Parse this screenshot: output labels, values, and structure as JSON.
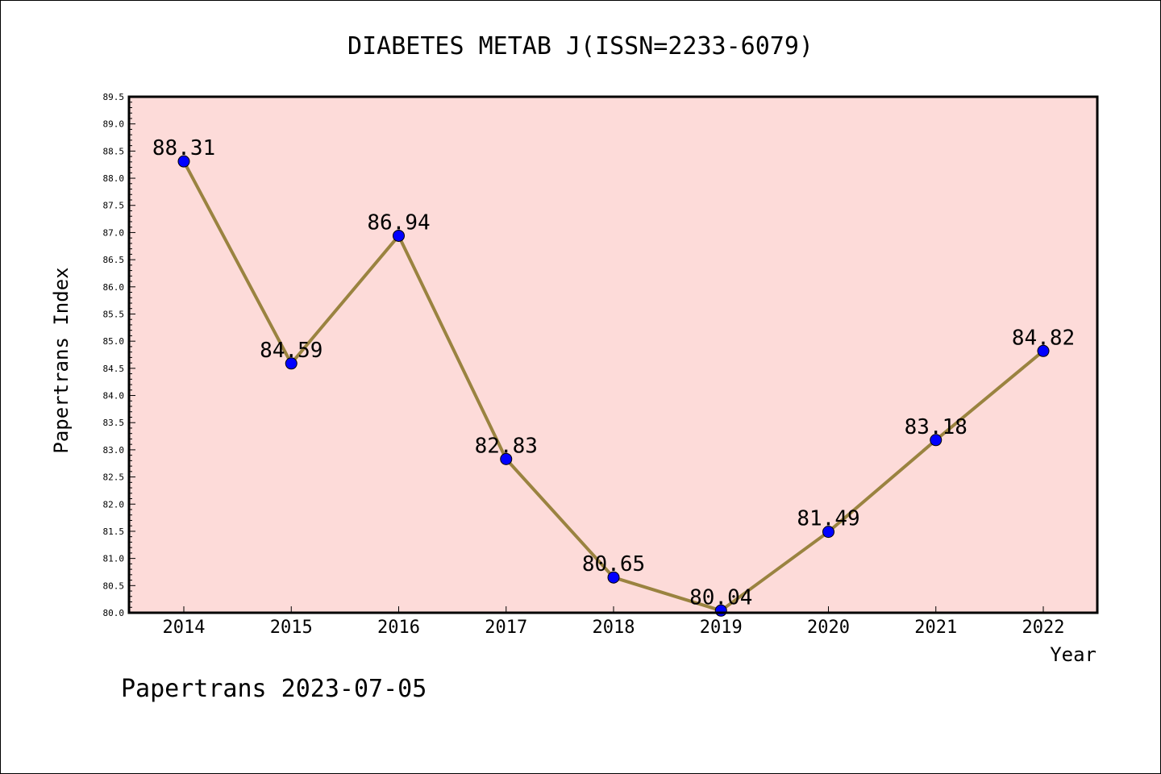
{
  "chart_data": {
    "type": "line",
    "title": "DIABETES METAB J(ISSN=2233-6079)",
    "xlabel": "Year",
    "ylabel": "Papertrans Index",
    "categories": [
      "2014",
      "2015",
      "2016",
      "2017",
      "2018",
      "2019",
      "2020",
      "2021",
      "2022"
    ],
    "values": [
      88.31,
      84.59,
      86.94,
      82.83,
      80.65,
      80.04,
      81.49,
      83.18,
      84.82
    ],
    "data_labels": [
      "88.31",
      "84.59",
      "86.94",
      "82.83",
      "80.65",
      "80.04",
      "81.49",
      "83.18",
      "84.82"
    ],
    "ylim": [
      80.0,
      89.5
    ],
    "yticks": [
      "80.0",
      "80.5",
      "81.0",
      "81.5",
      "82.0",
      "82.5",
      "83.0",
      "83.5",
      "84.0",
      "84.5",
      "85.0",
      "85.5",
      "86.0",
      "86.5",
      "87.0",
      "87.5",
      "88.0",
      "88.5",
      "89.0",
      "89.5"
    ],
    "grid": false,
    "colors": {
      "plot_background": "#fddbd9",
      "line": "#9a8340",
      "marker": "#0000ff",
      "axes": "#000000"
    }
  },
  "footer": "Papertrans 2023-07-05"
}
